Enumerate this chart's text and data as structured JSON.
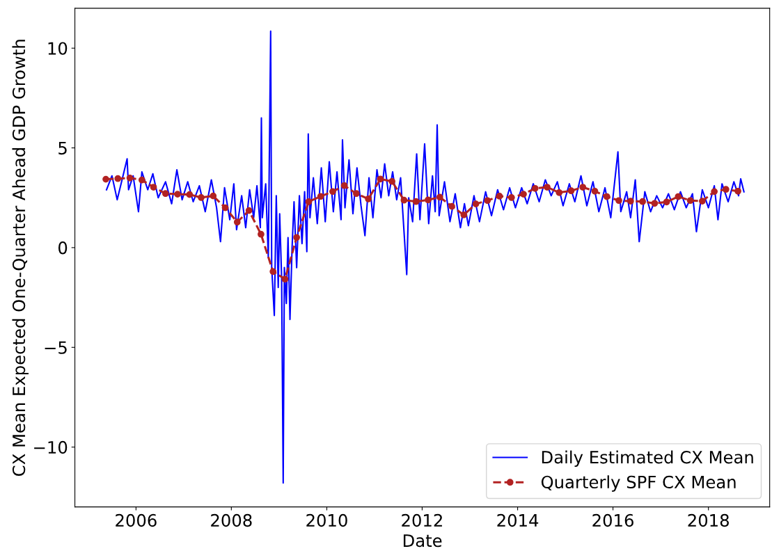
{
  "chart_data": {
    "type": "line",
    "xlabel": "Date",
    "ylabel": "CX Mean Expected One-Quarter Ahead GDP Growth",
    "xlim": [
      "2004-09-20",
      "2019-04-15"
    ],
    "xticks": [
      "2006",
      "2008",
      "2010",
      "2012",
      "2014",
      "2016",
      "2018"
    ],
    "ylim": [
      -13,
      12
    ],
    "yticks": [
      {
        "value": -10,
        "label": "−10"
      },
      {
        "value": -5,
        "label": "−5"
      },
      0,
      5,
      10
    ],
    "grid": false,
    "legend": "bottom right",
    "series": [
      {
        "name": "Daily Estimated CX Mean",
        "color": "#0000ff",
        "line_style": "solid",
        "marker": "none",
        "x": [
          "2005-05-20",
          "2005-07-01",
          "2005-08-10",
          "2005-09-20",
          "2005-10-25",
          "2005-11-05",
          "2005-12-10",
          "2006-01-20",
          "2006-02-15",
          "2006-04-01",
          "2006-05-10",
          "2006-06-20",
          "2006-08-15",
          "2006-10-01",
          "2006-11-10",
          "2006-12-20",
          "2007-02-01",
          "2007-03-15",
          "2007-05-01",
          "2007-06-15",
          "2007-08-01",
          "2007-09-10",
          "2007-10-10",
          "2007-11-10",
          "2007-12-20",
          "2008-01-20",
          "2008-02-10",
          "2008-03-20",
          "2008-04-20",
          "2008-05-20",
          "2008-06-20",
          "2008-07-15",
          "2008-08-10",
          "2008-08-18",
          "2008-08-25",
          "2008-09-20",
          "2008-10-10",
          "2008-10-28",
          "2008-11-05",
          "2008-11-25",
          "2008-12-10",
          "2008-12-25",
          "2009-01-05",
          "2009-01-20",
          "2009-02-01",
          "2009-02-10",
          "2009-02-25",
          "2009-03-10",
          "2009-03-25",
          "2009-04-10",
          "2009-04-25",
          "2009-05-15",
          "2009-06-05",
          "2009-06-25",
          "2009-07-15",
          "2009-08-01",
          "2009-08-12",
          "2009-08-25",
          "2009-09-20",
          "2009-10-20",
          "2009-11-20",
          "2009-12-20",
          "2010-01-20",
          "2010-02-20",
          "2010-03-20",
          "2010-04-20",
          "2010-05-01",
          "2010-05-20",
          "2010-06-20",
          "2010-07-20",
          "2010-08-20",
          "2010-09-20",
          "2010-10-20",
          "2010-11-20",
          "2010-12-20",
          "2011-01-20",
          "2011-02-20",
          "2011-03-20",
          "2011-04-20",
          "2011-05-20",
          "2011-06-20",
          "2011-07-20",
          "2011-09-05",
          "2011-09-20",
          "2011-10-20",
          "2011-11-20",
          "2011-12-15",
          "2012-01-20",
          "2012-02-20",
          "2012-03-20",
          "2012-04-10",
          "2012-04-25",
          "2012-05-10",
          "2012-06-20",
          "2012-08-01",
          "2012-09-10",
          "2012-10-20",
          "2012-11-20",
          "2012-12-20",
          "2013-02-01",
          "2013-03-15",
          "2013-05-01",
          "2013-06-15",
          "2013-08-01",
          "2013-09-15",
          "2013-11-01",
          "2013-12-15",
          "2014-02-01",
          "2014-03-15",
          "2014-05-01",
          "2014-06-15",
          "2014-08-01",
          "2014-09-15",
          "2014-11-01",
          "2014-12-15",
          "2015-02-01",
          "2015-03-15",
          "2015-05-01",
          "2015-06-15",
          "2015-08-01",
          "2015-09-15",
          "2015-11-01",
          "2015-12-15",
          "2016-02-08",
          "2016-03-01",
          "2016-04-15",
          "2016-05-15",
          "2016-06-20",
          "2016-07-20",
          "2016-09-01",
          "2016-10-15",
          "2016-12-01",
          "2017-01-15",
          "2017-03-01",
          "2017-04-15",
          "2017-06-01",
          "2017-07-15",
          "2017-09-01",
          "2017-10-01",
          "2017-11-15",
          "2018-01-01",
          "2018-02-15",
          "2018-03-15",
          "2018-04-15",
          "2018-06-01",
          "2018-07-15",
          "2018-08-20",
          "2018-09-05",
          "2018-09-30"
        ],
        "values": [
          2.9,
          3.6,
          2.4,
          3.5,
          4.45,
          2.9,
          3.6,
          1.8,
          3.8,
          2.9,
          3.7,
          2.5,
          3.3,
          2.2,
          3.9,
          2.4,
          3.3,
          2.3,
          3.1,
          1.8,
          3.4,
          2.0,
          0.3,
          3.0,
          1.4,
          3.2,
          0.9,
          2.6,
          1.0,
          2.9,
          1.5,
          3.1,
          1.0,
          6.5,
          1.5,
          3.2,
          -0.5,
          10.85,
          -1.0,
          -3.4,
          2.6,
          -2.0,
          1.7,
          -1.5,
          -11.8,
          -1.0,
          -2.8,
          0.5,
          -3.6,
          0.0,
          2.3,
          -1.0,
          2.6,
          0.2,
          2.8,
          -0.2,
          5.7,
          1.5,
          3.5,
          1.2,
          4.0,
          1.3,
          4.3,
          1.8,
          3.8,
          1.4,
          5.4,
          2.0,
          4.4,
          1.7,
          4.0,
          2.1,
          0.6,
          3.5,
          1.5,
          3.9,
          2.5,
          4.2,
          2.6,
          3.8,
          2.4,
          3.5,
          -1.35,
          2.5,
          1.3,
          4.7,
          1.4,
          5.2,
          1.2,
          3.6,
          1.8,
          6.15,
          1.6,
          3.3,
          1.3,
          2.7,
          1.0,
          2.2,
          1.1,
          2.6,
          1.3,
          2.8,
          1.6,
          2.9,
          1.9,
          3.0,
          2.0,
          3.0,
          2.2,
          3.2,
          2.3,
          3.4,
          2.6,
          3.3,
          2.1,
          3.2,
          2.3,
          3.6,
          2.1,
          3.3,
          1.8,
          3.0,
          1.5,
          4.8,
          1.8,
          2.8,
          1.5,
          3.4,
          0.3,
          2.8,
          1.8,
          2.6,
          2.0,
          2.7,
          1.9,
          2.8,
          2.0,
          2.7,
          0.8,
          2.9,
          2.0,
          3.1,
          1.4,
          3.2,
          2.3,
          3.3,
          2.6,
          3.45,
          2.8
        ]
      },
      {
        "name": "Quarterly SPF CX Mean",
        "color": "#b22222",
        "line_style": "dashed",
        "marker": "circle",
        "x": [
          "2005-05-15",
          "2005-08-15",
          "2005-11-15",
          "2006-02-15",
          "2006-05-15",
          "2006-08-15",
          "2006-11-15",
          "2007-02-15",
          "2007-05-15",
          "2007-08-15",
          "2007-11-15",
          "2008-02-15",
          "2008-05-15",
          "2008-08-15",
          "2008-11-15",
          "2009-02-15",
          "2009-05-15",
          "2009-08-15",
          "2009-11-15",
          "2010-02-15",
          "2010-05-15",
          "2010-08-15",
          "2010-11-15",
          "2011-02-15",
          "2011-05-15",
          "2011-08-15",
          "2011-11-15",
          "2012-02-15",
          "2012-05-15",
          "2012-08-15",
          "2012-11-15",
          "2013-02-15",
          "2013-05-15",
          "2013-08-15",
          "2013-11-15",
          "2014-02-15",
          "2014-05-15",
          "2014-08-15",
          "2014-11-15",
          "2015-02-15",
          "2015-05-15",
          "2015-08-15",
          "2015-11-15",
          "2016-02-15",
          "2016-05-15",
          "2016-08-15",
          "2016-11-15",
          "2017-02-15",
          "2017-05-15",
          "2017-08-15",
          "2017-11-15",
          "2018-02-15",
          "2018-05-15",
          "2018-08-15"
        ],
        "values": [
          3.43,
          3.46,
          3.49,
          3.39,
          3.03,
          2.71,
          2.68,
          2.66,
          2.51,
          2.59,
          2.0,
          1.28,
          1.86,
          0.67,
          -1.2,
          -1.58,
          0.51,
          2.3,
          2.57,
          2.81,
          3.11,
          2.71,
          2.44,
          3.44,
          3.32,
          2.38,
          2.31,
          2.39,
          2.53,
          2.07,
          1.64,
          2.19,
          2.36,
          2.58,
          2.51,
          2.68,
          2.97,
          3.03,
          2.76,
          2.85,
          3.03,
          2.83,
          2.56,
          2.36,
          2.33,
          2.31,
          2.22,
          2.29,
          2.56,
          2.36,
          2.33,
          2.81,
          2.92,
          2.83
        ]
      }
    ]
  }
}
